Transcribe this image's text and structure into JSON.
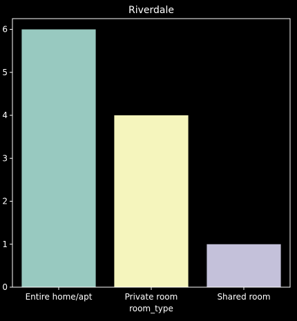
{
  "chart_data": {
    "type": "bar",
    "title": "Riverdale",
    "xlabel": "room_type",
    "ylabel": "",
    "categories": [
      "Entire home/apt",
      "Private room",
      "Shared room"
    ],
    "values": [
      6,
      4,
      1
    ],
    "bar_colors": [
      "#98c9c0",
      "#f5f5bd",
      "#c4c1da"
    ],
    "ylim": [
      0,
      6.25
    ],
    "yticks": [
      "0",
      "1",
      "2",
      "3",
      "4",
      "5",
      "6"
    ],
    "grid": false,
    "legend": "none"
  },
  "colors": {
    "background": "#000000",
    "axes": "#ffffff",
    "text": "#ffffff"
  }
}
